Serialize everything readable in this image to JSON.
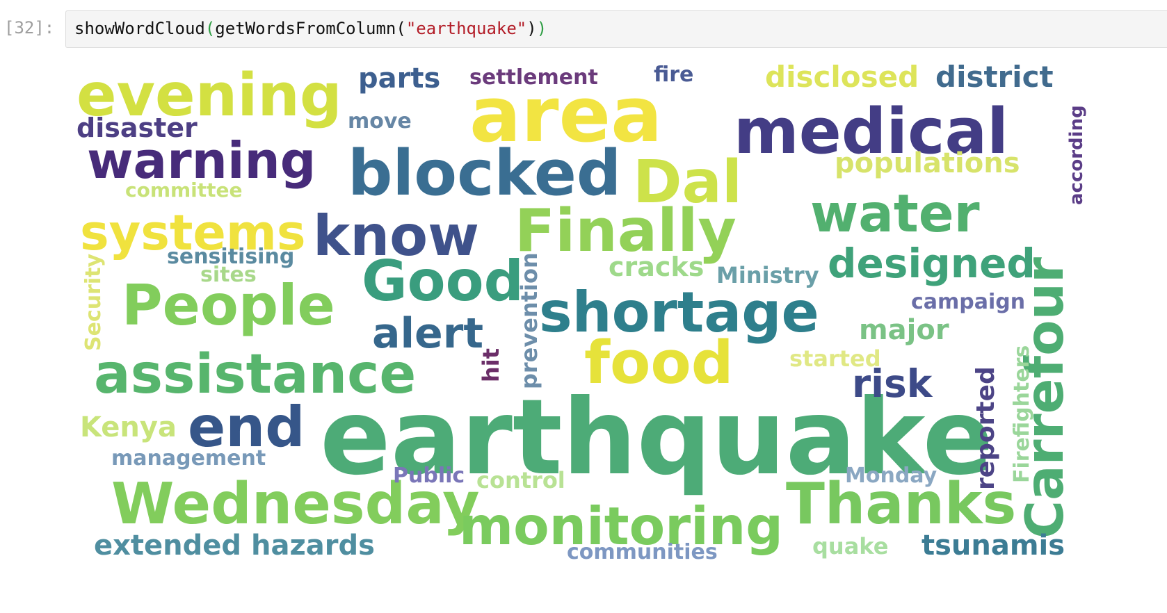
{
  "cell": {
    "prompt": "[32]:",
    "code": {
      "func": "showWordCloud",
      "open1": "(",
      "inner_func": "getWordsFromColumn",
      "open2": "(",
      "string": "\"earthquake\"",
      "close2": ")",
      "close1": ")"
    }
  },
  "wordcloud": {
    "words": [
      {
        "text": "earthquake",
        "color": "#4dab77"
      },
      {
        "text": "area",
        "color": "#f2e442"
      },
      {
        "text": "medical",
        "color": "#433d85"
      },
      {
        "text": "blocked",
        "color": "#3a6e92"
      },
      {
        "text": "warning",
        "color": "#472b7a"
      },
      {
        "text": "evening",
        "color": "#d3e042"
      },
      {
        "text": "Dal",
        "color": "#cde24a"
      },
      {
        "text": "Finally",
        "color": "#93d158"
      },
      {
        "text": "know",
        "color": "#3f528b"
      },
      {
        "text": "systems",
        "color": "#f0e23e"
      },
      {
        "text": "water",
        "color": "#52b06f"
      },
      {
        "text": "designed",
        "color": "#3fa27a"
      },
      {
        "text": "Good",
        "color": "#3a9d7e"
      },
      {
        "text": "People",
        "color": "#82cd5c"
      },
      {
        "text": "shortage",
        "color": "#2e7f8c"
      },
      {
        "text": "alert",
        "color": "#36678c"
      },
      {
        "text": "assistance",
        "color": "#57b56d"
      },
      {
        "text": "food",
        "color": "#e6e23a"
      },
      {
        "text": "risk",
        "color": "#3d4a88"
      },
      {
        "text": "end",
        "color": "#365689"
      },
      {
        "text": "Wednesday",
        "color": "#82cd5c"
      },
      {
        "text": "monitoring",
        "color": "#7acb5e"
      },
      {
        "text": "Thanks",
        "color": "#78c85f"
      },
      {
        "text": "Carrefour",
        "color": "#4ead73"
      },
      {
        "text": "parts",
        "color": "#3d5f8f"
      },
      {
        "text": "settlement",
        "color": "#6b3b7c"
      },
      {
        "text": "fire",
        "color": "#4a5b94"
      },
      {
        "text": "disclosed",
        "color": "#dde45a"
      },
      {
        "text": "district",
        "color": "#416b8e"
      },
      {
        "text": "disaster",
        "color": "#4d3f84"
      },
      {
        "text": "move",
        "color": "#6686a5"
      },
      {
        "text": "committee",
        "color": "#c8e278"
      },
      {
        "text": "populations",
        "color": "#d7e36a"
      },
      {
        "text": "according",
        "color": "#5b3d87"
      },
      {
        "text": "sensitising",
        "color": "#5a8aa0"
      },
      {
        "text": "sites",
        "color": "#a8d88a"
      },
      {
        "text": "Security",
        "color": "#dde473"
      },
      {
        "text": "cracks",
        "color": "#9ed98a"
      },
      {
        "text": "Ministry",
        "color": "#6a9fa8"
      },
      {
        "text": "prevention",
        "color": "#6d8eaa"
      },
      {
        "text": "campaign",
        "color": "#6a6ea8"
      },
      {
        "text": "major",
        "color": "#7ac285"
      },
      {
        "text": "started",
        "color": "#e0e884"
      },
      {
        "text": "hit",
        "color": "#6b2e68"
      },
      {
        "text": "reported",
        "color": "#4c4486"
      },
      {
        "text": "Firefighters",
        "color": "#9ad69a"
      },
      {
        "text": "Kenya",
        "color": "#c8e47a"
      },
      {
        "text": "management",
        "color": "#7899b8"
      },
      {
        "text": "Public",
        "color": "#7a76b8"
      },
      {
        "text": "control",
        "color": "#b8e294"
      },
      {
        "text": "Monday",
        "color": "#8aa7c2"
      },
      {
        "text": "extended hazards",
        "color": "#4f8ea0"
      },
      {
        "text": "communities",
        "color": "#7d97c2"
      },
      {
        "text": "quake",
        "color": "#a8dea0"
      },
      {
        "text": "tsunamis",
        "color": "#3c7c94"
      }
    ]
  }
}
